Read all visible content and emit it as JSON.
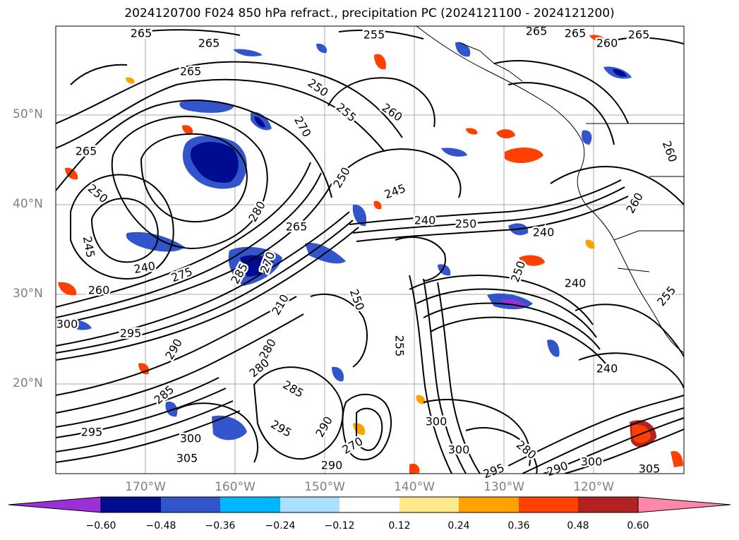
{
  "title": "2024120700 F024 850 hPa refract., precipitation PC (2024121100 - 2024121200)",
  "map": {
    "lat_labels": [
      "50°N",
      "40°N",
      "30°N",
      "20°N"
    ],
    "lon_labels": [
      "170°W",
      "160°W",
      "150°W",
      "140°W",
      "130°W",
      "120°W"
    ],
    "contour_labels": [
      "265",
      "265",
      "255",
      "265",
      "260",
      "265",
      "265",
      "250",
      "255",
      "260",
      "270",
      "265",
      "265",
      "250",
      "245",
      "240",
      "250",
      "280",
      "265",
      "245",
      "240",
      "275",
      "260",
      "285",
      "270",
      "280",
      "285",
      "240",
      "250",
      "300",
      "295",
      "290",
      "250",
      "210",
      "280",
      "285",
      "295",
      "300",
      "305",
      "295",
      "290",
      "270",
      "300",
      "290",
      "295",
      "300",
      "280",
      "290",
      "300",
      "305",
      "240",
      "240",
      "255",
      "260",
      "260",
      "250",
      "255"
    ]
  },
  "colorbar": {
    "ticks": [
      "−0.60",
      "−0.48",
      "−0.36",
      "−0.24",
      "−0.12",
      "0.12",
      "0.24",
      "0.36",
      "0.48",
      "0.60"
    ],
    "colors": [
      "#9b30d9",
      "#000c8f",
      "#3355cc",
      "#00b7ff",
      "#aadfff",
      "#ffffff",
      "#ffe98a",
      "#ffa200",
      "#ff4000",
      "#b22222",
      "#ff88aa"
    ]
  }
}
